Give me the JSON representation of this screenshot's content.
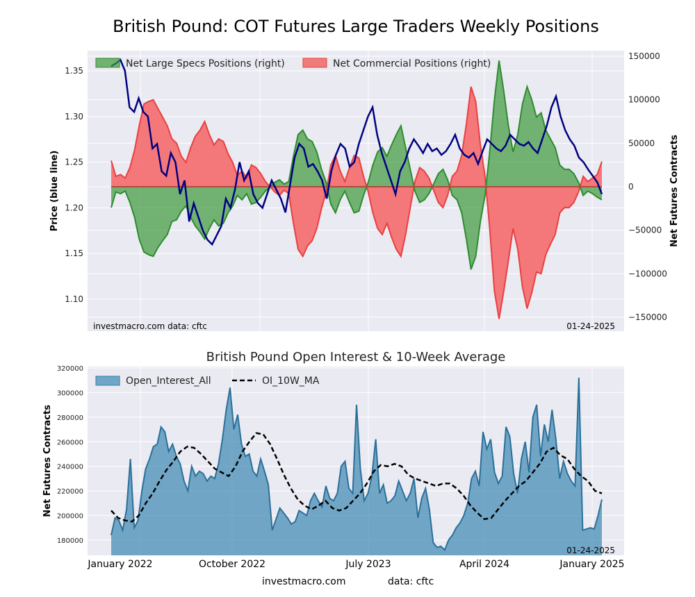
{
  "chart_data": [
    {
      "type": "area",
      "title": "British Pound: COT Futures Large Traders Weekly Positions",
      "ylabel_left": "Price (blue line)",
      "ylabel_right": "Net Futures Contracts",
      "left_ylim": [
        1.07,
        1.37
      ],
      "left_ticks": [
        "1.10",
        "1.15",
        "1.20",
        "1.25",
        "1.30",
        "1.35"
      ],
      "left_tick_values": [
        1.1,
        1.15,
        1.2,
        1.25,
        1.3,
        1.35
      ],
      "right_ylim": [
        -155000,
        155000
      ],
      "right_ticks": [
        "−150000",
        "−100000",
        "−50000",
        "0",
        "50000",
        "100000",
        "150000"
      ],
      "right_tick_values": [
        -150000,
        -100000,
        -50000,
        0,
        50000,
        100000,
        150000
      ],
      "legend": [
        "Net Large Specs Positions (right)",
        "Net Commercial Positions (right)"
      ],
      "legend_position": "top",
      "source_left": "investmacro.com    data: cftc",
      "date_label": "01-24-2025",
      "x_start": "2021-11",
      "x_end": "2025-01",
      "series": [
        {
          "name": "Net Large Specs Positions",
          "color": "#2e8b2e",
          "values": [
            -24000,
            -6000,
            -8000,
            -5000,
            -18000,
            -35000,
            -60000,
            -75000,
            -78000,
            -80000,
            -70000,
            -62000,
            -55000,
            -40000,
            -38000,
            -28000,
            -22000,
            -35000,
            -45000,
            -52000,
            -60000,
            -48000,
            -38000,
            -45000,
            -42000,
            -30000,
            -22000,
            -10000,
            -15000,
            -8000,
            -20000,
            -18000,
            -12000,
            -5000,
            0,
            5000,
            8000,
            3000,
            6000,
            35000,
            60000,
            65000,
            55000,
            52000,
            40000,
            20000,
            5000,
            -20000,
            -30000,
            -15000,
            -5000,
            -18000,
            -30000,
            -28000,
            -10000,
            5000,
            25000,
            40000,
            45000,
            35000,
            48000,
            60000,
            70000,
            45000,
            20000,
            -5000,
            -18000,
            -15000,
            -8000,
            3000,
            15000,
            20000,
            8000,
            -10000,
            -15000,
            -30000,
            -60000,
            -95000,
            -80000,
            -40000,
            -10000,
            40000,
            100000,
            145000,
            110000,
            70000,
            40000,
            60000,
            95000,
            115000,
            100000,
            80000,
            85000,
            65000,
            55000,
            45000,
            25000,
            20000,
            20000,
            15000,
            5000,
            -10000,
            -5000,
            -8000,
            -12000,
            -15000
          ]
        },
        {
          "name": "Net Commercial Positions",
          "color": "#e84040",
          "values": [
            30000,
            12000,
            14000,
            10000,
            22000,
            42000,
            70000,
            95000,
            98000,
            100000,
            90000,
            80000,
            70000,
            55000,
            50000,
            35000,
            28000,
            45000,
            58000,
            65000,
            75000,
            60000,
            48000,
            55000,
            52000,
            38000,
            28000,
            13000,
            18000,
            10000,
            25000,
            22000,
            15000,
            6000,
            0,
            -6000,
            -10000,
            -4000,
            -8000,
            -42000,
            -72000,
            -80000,
            -68000,
            -62000,
            -48000,
            -25000,
            -6000,
            25000,
            36000,
            18000,
            6000,
            22000,
            36000,
            33000,
            12000,
            -6000,
            -30000,
            -48000,
            -55000,
            -42000,
            -58000,
            -72000,
            -80000,
            -55000,
            -24000,
            6000,
            22000,
            18000,
            10000,
            -4000,
            -18000,
            -24000,
            -10000,
            12000,
            18000,
            36000,
            72000,
            115000,
            98000,
            48000,
            12000,
            -48000,
            -120000,
            -152000,
            -120000,
            -85000,
            -48000,
            -72000,
            -115000,
            -140000,
            -122000,
            -98000,
            -100000,
            -78000,
            -66000,
            -55000,
            -30000,
            -24000,
            -24000,
            -18000,
            -6000,
            12000,
            6000,
            10000,
            14000,
            29000
          ]
        },
        {
          "name": "Price",
          "color": "#000080",
          "axis": "left",
          "values": [
            1.355,
            1.358,
            1.362,
            1.35,
            1.31,
            1.305,
            1.32,
            1.305,
            1.3,
            1.265,
            1.27,
            1.24,
            1.235,
            1.26,
            1.25,
            1.215,
            1.23,
            1.185,
            1.205,
            1.19,
            1.175,
            1.165,
            1.16,
            1.17,
            1.18,
            1.21,
            1.2,
            1.22,
            1.25,
            1.23,
            1.24,
            1.215,
            1.205,
            1.2,
            1.215,
            1.23,
            1.22,
            1.21,
            1.195,
            1.225,
            1.255,
            1.27,
            1.265,
            1.245,
            1.248,
            1.24,
            1.23,
            1.21,
            1.24,
            1.258,
            1.27,
            1.265,
            1.245,
            1.25,
            1.27,
            1.285,
            1.3,
            1.31,
            1.28,
            1.26,
            1.245,
            1.23,
            1.215,
            1.24,
            1.25,
            1.265,
            1.275,
            1.268,
            1.26,
            1.27,
            1.262,
            1.265,
            1.258,
            1.262,
            1.27,
            1.28,
            1.265,
            1.258,
            1.255,
            1.26,
            1.248,
            1.262,
            1.275,
            1.27,
            1.265,
            1.262,
            1.268,
            1.28,
            1.275,
            1.27,
            1.268,
            1.272,
            1.265,
            1.26,
            1.275,
            1.29,
            1.31,
            1.322,
            1.3,
            1.285,
            1.275,
            1.268,
            1.255,
            1.25,
            1.242,
            1.235,
            1.228,
            1.215
          ]
        }
      ]
    },
    {
      "type": "area",
      "title": "British Pound Open Interest & 10-Week Average",
      "ylabel": "Net Futures Contracts",
      "ylim": [
        168000,
        322000
      ],
      "y_ticks": [
        "180000",
        "200000",
        "220000",
        "240000",
        "260000",
        "280000",
        "300000",
        "320000"
      ],
      "y_tick_values": [
        180000,
        200000,
        220000,
        240000,
        260000,
        280000,
        300000,
        320000
      ],
      "x_ticks": [
        "January 2022",
        "October 2022",
        "July 2023",
        "April 2024",
        "January 2025"
      ],
      "legend": [
        "Open_Interest_All",
        "OI_10W_MA"
      ],
      "legend_position": "top-left",
      "date_label": "01-24-2025",
      "footer_left": "investmacro.com",
      "footer_right": "data: cftc",
      "series": [
        {
          "name": "Open_Interest_All",
          "color": "#2f7fac",
          "values": [
            184000,
            198000,
            196000,
            188000,
            205000,
            246000,
            190000,
            196000,
            220000,
            238000,
            246000,
            256000,
            258000,
            272000,
            268000,
            252000,
            258000,
            248000,
            242000,
            228000,
            220000,
            240000,
            232000,
            236000,
            234000,
            228000,
            232000,
            230000,
            242000,
            262000,
            286000,
            304000,
            270000,
            282000,
            258000,
            248000,
            250000,
            236000,
            232000,
            246000,
            236000,
            225000,
            188000,
            197000,
            206000,
            202000,
            198000,
            193000,
            195000,
            204000,
            202000,
            200000,
            212000,
            218000,
            212000,
            207000,
            224000,
            214000,
            212000,
            218000,
            240000,
            244000,
            222000,
            218000,
            290000,
            238000,
            212000,
            218000,
            232000,
            262000,
            218000,
            225000,
            210000,
            212000,
            216000,
            228000,
            220000,
            212000,
            218000,
            230000,
            198000,
            214000,
            222000,
            205000,
            178000,
            174000,
            175000,
            172000,
            180000,
            184000,
            190000,
            194000,
            200000,
            210000,
            230000,
            236000,
            224000,
            268000,
            254000,
            262000,
            235000,
            226000,
            232000,
            272000,
            264000,
            234000,
            218000,
            246000,
            260000,
            235000,
            280000,
            290000,
            248000,
            274000,
            260000,
            286000,
            262000,
            230000,
            244000,
            234000,
            228000,
            224000,
            312000,
            188000,
            189000,
            190000,
            189000,
            200000,
            213000
          ]
        },
        {
          "name": "OI_10W_MA",
          "color": "#000000",
          "dashed": true,
          "values": [
            204000,
            198000,
            196000,
            195000,
            200000,
            210000,
            218000,
            228000,
            237000,
            244000,
            252000,
            256000,
            255000,
            250000,
            244000,
            238000,
            235000,
            232000,
            240000,
            252000,
            260000,
            267000,
            266000,
            258000,
            246000,
            233000,
            222000,
            213000,
            208000,
            205000,
            208000,
            212000,
            206000,
            204000,
            206000,
            212000,
            218000,
            226000,
            236000,
            241000,
            240000,
            242000,
            240000,
            233000,
            230000,
            228000,
            226000,
            224000,
            226000,
            226000,
            222000,
            216000,
            208000,
            202000,
            197000,
            198000,
            205000,
            212000,
            218000,
            224000,
            228000,
            235000,
            242000,
            252000,
            255000,
            249000,
            246000,
            238000,
            232000,
            228000,
            220000,
            218000
          ]
        }
      ]
    }
  ]
}
